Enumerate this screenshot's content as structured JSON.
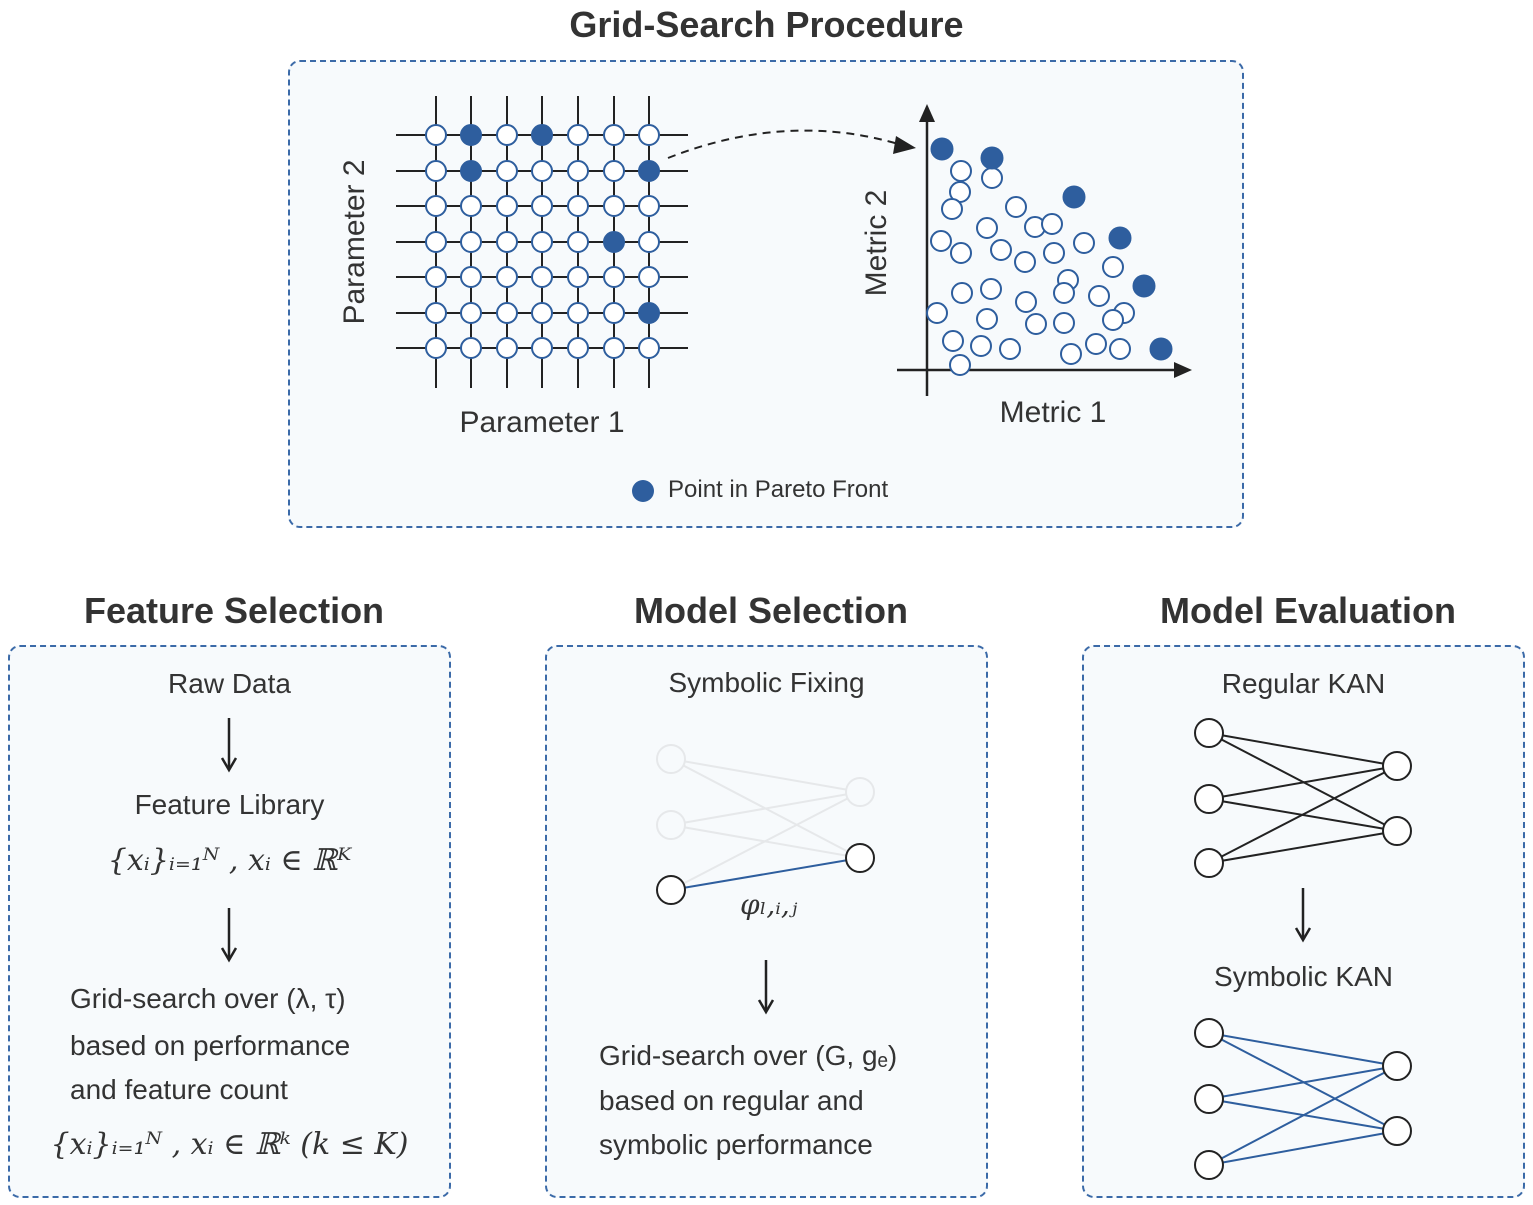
{
  "grid_search": {
    "title": "Grid-Search Procedure",
    "xlabel": "Parameter 1",
    "ylabel": "Parameter 2",
    "metric_xlabel": "Metric 1",
    "metric_ylabel": "Metric 2",
    "legend": "Point in Pareto Front",
    "colors": {
      "pareto": "#2e5e9e",
      "border": "#3b6aa8",
      "line": "#222222"
    }
  },
  "feature_selection": {
    "title": "Feature Selection",
    "step1": "Raw Data",
    "step2": "Feature Library",
    "formula1": "{xᵢ}ᵢ₌₁ᴺ , xᵢ ∈ ℝᴷ",
    "step3_line1": "Grid-search over (λ, τ)",
    "step3_line2": "based on performance",
    "step3_line3": "and feature count",
    "formula2": "{xᵢ}ᵢ₌₁ᴺ , xᵢ ∈ ℝᵏ (k ≤ K)"
  },
  "model_selection": {
    "title": "Model Selection",
    "step1": "Symbolic Fixing",
    "edge_label": "φₗ,ᵢ,ⱼ",
    "step2_line1": "Grid-search over (G, gₑ)",
    "step2_line2": "based on regular and",
    "step2_line3": "symbolic performance"
  },
  "model_evaluation": {
    "title": "Model Evaluation",
    "step1": "Regular KAN",
    "step2": "Symbolic KAN"
  }
}
